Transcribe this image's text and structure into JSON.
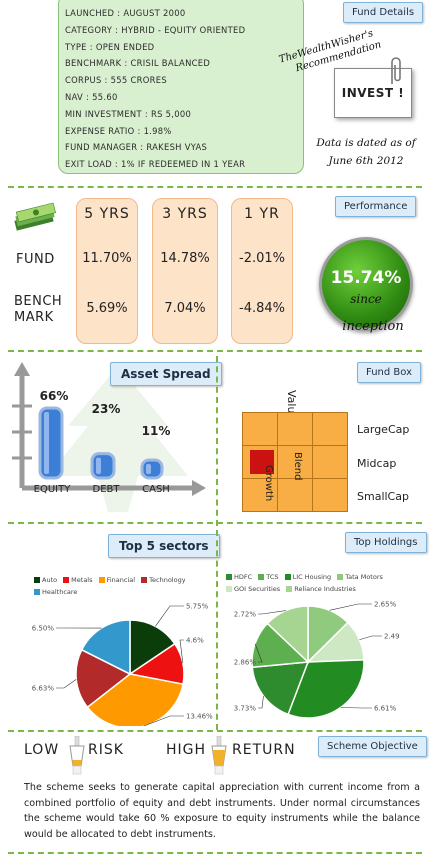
{
  "fund_details": {
    "tag": "Fund Details",
    "rows": [
      "LAUNCHED : AUGUST 2000",
      "CATEGORY : HYBRID - EQUITY ORIENTED",
      "TYPE : OPEN ENDED",
      "BENCHMARK : CRISIL BALANCED",
      "CORPUS : 555 CRORES",
      "NAV : 55.60",
      "MIN INVESTMENT : RS 5,000",
      "EXPENSE RATIO : 1.98%",
      "FUND MANAGER : RAKESH VYAS",
      "EXIT LOAD : 1% IF REDEEMED IN 1 YEAR"
    ],
    "recommendation_line1": "TheWealthWisher's",
    "recommendation_line2": "Recommendation",
    "verdict": "INVEST !",
    "date_line1": "Data is dated as of",
    "date_line2": "June 6th 2012"
  },
  "performance": {
    "tag": "Performance",
    "columns": [
      "5 YRS",
      "3 YRS",
      "1 YR"
    ],
    "fund_label": "FUND",
    "bench_label_1": "BENCH",
    "bench_label_2": "MARK",
    "fund": [
      "11.70%",
      "14.78%",
      "-2.01%"
    ],
    "benchmark": [
      "5.69%",
      "7.04%",
      "-4.84%"
    ],
    "since_value": "15.74%",
    "since_text_1": "since",
    "since_text_2": "inception"
  },
  "asset_spread": {
    "tag": "Asset Spread",
    "items": [
      {
        "label": "EQUITY",
        "value": "66%",
        "pct": 66
      },
      {
        "label": "DEBT",
        "value": "23%",
        "pct": 23
      },
      {
        "label": "CASH",
        "value": "11%",
        "pct": 11
      }
    ],
    "bar_color": "#3d7ed6"
  },
  "fund_box": {
    "tag": "Fund Box",
    "value_label": "Value",
    "blend_label": "Blend",
    "growth_label": "Growth",
    "rows": [
      "LargeCap",
      "Midcap",
      "SmallCap"
    ],
    "highlight": {
      "row": 1,
      "col": 0
    },
    "cell_color": "#f9ad45",
    "highlight_color": "#cc1111"
  },
  "top_sectors": {
    "tag": "Top 5 sectors",
    "chart_data": {
      "type": "pie",
      "legend": [
        "Auto",
        "Metals",
        "Financial",
        "Technology",
        "Healthcare"
      ],
      "slices": [
        {
          "name": "Auto",
          "value": 5.75,
          "label": "5.75%",
          "color": "#0b3d0b"
        },
        {
          "name": "Metals",
          "value": 4.6,
          "label": "4.6%",
          "color": "#ee1111"
        },
        {
          "name": "Financial",
          "value": 13.46,
          "label": "13.46%",
          "color": "#ff9900"
        },
        {
          "name": "Technology",
          "value": 6.63,
          "label": "6.63%",
          "color": "#b22a2a"
        },
        {
          "name": "Healthcare",
          "value": 6.5,
          "label": "6.50%",
          "color": "#3399cc"
        }
      ]
    }
  },
  "top_holdings": {
    "tag": "Top Holdings",
    "chart_data": {
      "type": "pie",
      "legend": [
        "HDFC",
        "TCS",
        "LIC Housing",
        "Tata Motors",
        "GOI Securities",
        "Reliance Industries"
      ],
      "slices": [
        {
          "name": "Tata Motors",
          "value": 2.65,
          "label": "2.65%",
          "color": "#8fca7e"
        },
        {
          "name": "GOI Securities",
          "value": 2.49,
          "label": "2.49",
          "color": "#cde8c3"
        },
        {
          "name": "LIC Housing",
          "value": 6.61,
          "label": "6.61%",
          "color": "#228b22"
        },
        {
          "name": "HDFC",
          "value": 3.73,
          "label": "3.73%",
          "color": "#2e8b2e"
        },
        {
          "name": "TCS",
          "value": 2.86,
          "label": "2.86%",
          "color": "#5daf4f"
        },
        {
          "name": "Reliance Industries",
          "value": 2.72,
          "label": "2.72%",
          "color": "#a6d592"
        }
      ],
      "legend_colors": [
        "#2e8b2e",
        "#5daf4f",
        "#228b22",
        "#8fca7e",
        "#cde8c3",
        "#a6d592"
      ]
    }
  },
  "scheme_objective": {
    "tag": "Scheme Objective",
    "low": "LOW",
    "risk": "RISK",
    "high": "HIGH",
    "return": "RETURN",
    "text": "The scheme seeks to generate capital appreciation with current income from a combined portfolio of equity and debt instruments. Under normal circumstances the scheme would take 60 % exposure to equity instruments while the balance would be allocated to debt instruments."
  },
  "colors": {
    "accent_green": "#7ab648",
    "tag_blue": "#dcecf8",
    "orange_panel": "#fde3c8"
  }
}
